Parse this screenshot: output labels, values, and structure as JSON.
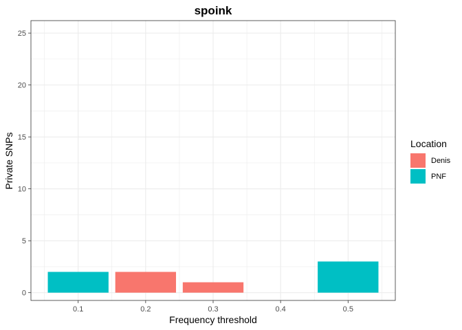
{
  "chart_data": {
    "type": "bar",
    "title": "spoink",
    "xlabel": "Frequency threshold",
    "ylabel": "Private SNPs",
    "x_ticks": [
      "0.1",
      "0.2",
      "0.3",
      "0.4",
      "0.5"
    ],
    "y_ticks": [
      0,
      5,
      10,
      15,
      20,
      25
    ],
    "xlim": [
      0.03,
      0.57
    ],
    "ylim": [
      -0.75,
      26.2
    ],
    "grid": true,
    "legend": {
      "title": "Location",
      "placement": "right",
      "entries": [
        {
          "name": "Denis",
          "color": "#F8766D"
        },
        {
          "name": "PNF",
          "color": "#00BFC4"
        }
      ]
    },
    "bars": [
      {
        "x": 0.1,
        "value": 2,
        "series": "PNF"
      },
      {
        "x": 0.2,
        "value": 2,
        "series": "Denis"
      },
      {
        "x": 0.3,
        "value": 1,
        "series": "Denis"
      },
      {
        "x": 0.5,
        "value": 3,
        "series": "PNF"
      }
    ],
    "bar_width": 0.09
  }
}
